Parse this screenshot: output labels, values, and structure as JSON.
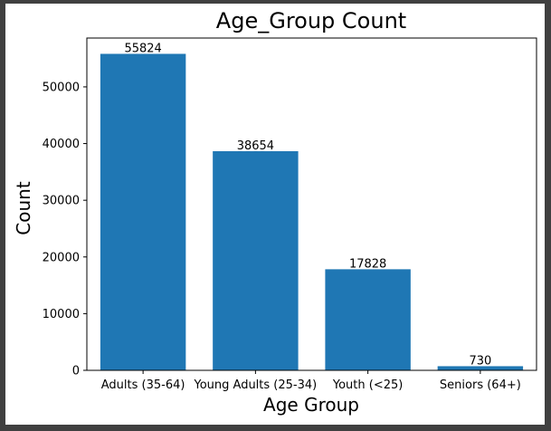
{
  "chart_data": {
    "type": "bar",
    "title": "Age_Group Count",
    "xlabel": "Age Group",
    "ylabel": "Count",
    "categories": [
      "Adults (35-64)",
      "Young Adults (25-34)",
      "Youth (<25)",
      "Seniors (64+)"
    ],
    "values": [
      55824,
      38654,
      17828,
      730
    ],
    "ylim": [
      0,
      58615
    ],
    "yticks": [
      0,
      10000,
      20000,
      30000,
      40000,
      50000
    ],
    "grid": false,
    "bar_color": "#1f77b4"
  }
}
